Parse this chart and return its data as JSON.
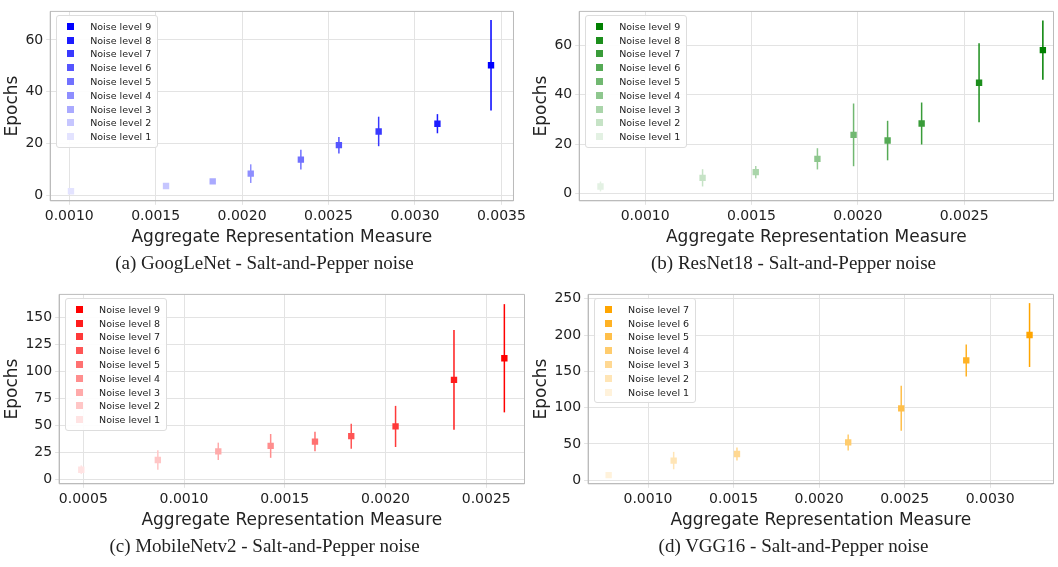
{
  "chart_data": [
    {
      "type": "scatter",
      "title": "(a) GoogLeNet - Salt-and-Pepper noise",
      "xlabel": "Aggregate Representation Measure",
      "ylabel": "Epochs",
      "marker": "square",
      "grid": true,
      "legend": "top left",
      "xlim": [
        0.00089,
        0.00357
      ],
      "ylim": [
        -2.2,
        71
      ],
      "yticks": [
        0,
        20,
        40,
        60
      ],
      "xticks": [
        {
          "value": 0.001,
          "label": "0.0010"
        },
        {
          "value": 0.0015,
          "label": "0.0015"
        },
        {
          "value": 0.002,
          "label": "0.0020"
        },
        {
          "value": 0.0025,
          "label": "0.0025"
        },
        {
          "value": 0.003,
          "label": "0.0030"
        },
        {
          "value": 0.0035,
          "label": "0.0035"
        }
      ],
      "series": [
        {
          "name": "Noise level 1",
          "color": "#e3e3ff",
          "x": [
            0.00101
          ],
          "values": [
            1.5
          ],
          "errors": [
            0.5
          ]
        },
        {
          "name": "Noise level 2",
          "color": "#c6c6ff",
          "x": [
            0.00156
          ],
          "values": [
            3.5
          ],
          "errors": [
            0.5
          ]
        },
        {
          "name": "Noise level 3",
          "color": "#aaaaff",
          "x": [
            0.00183
          ],
          "values": [
            5.3
          ],
          "errors": [
            0.8
          ]
        },
        {
          "name": "Noise level 4",
          "color": "#8e8eff",
          "x": [
            0.00205
          ],
          "values": [
            8.3
          ],
          "errors": [
            3.6
          ]
        },
        {
          "name": "Noise level 5",
          "color": "#7171ff",
          "x": [
            0.00234
          ],
          "values": [
            13.7
          ],
          "errors": [
            3.8
          ]
        },
        {
          "name": "Noise level 6",
          "color": "#5555ff",
          "x": [
            0.00256
          ],
          "values": [
            19.3
          ],
          "errors": [
            3.2
          ]
        },
        {
          "name": "Noise level 7",
          "color": "#3939ff",
          "x": [
            0.00279
          ],
          "values": [
            24.6
          ],
          "errors": [
            5.7
          ]
        },
        {
          "name": "Noise level 8",
          "color": "#1c1cff",
          "x": [
            0.00313
          ],
          "values": [
            27.6
          ],
          "errors": [
            3.7
          ]
        },
        {
          "name": "Noise level 9",
          "color": "#0000ff",
          "x": [
            0.00344
          ],
          "values": [
            50.2
          ],
          "errors": [
            17.5
          ]
        }
      ]
    },
    {
      "type": "scatter",
      "title": "(b) ResNet18 - Salt-and-Pepper noise",
      "xlabel": "Aggregate Representation Measure",
      "ylabel": "Epochs",
      "marker": "square",
      "grid": true,
      "legend": "top left",
      "xlim": [
        0.00069,
        0.00292
      ],
      "ylim": [
        -3,
        73.7
      ],
      "yticks": [
        0,
        20,
        40,
        60
      ],
      "xticks": [
        {
          "value": 0.001,
          "label": "0.0010"
        },
        {
          "value": 0.0015,
          "label": "0.0015"
        },
        {
          "value": 0.002,
          "label": "0.0020"
        },
        {
          "value": 0.0025,
          "label": "0.0025"
        }
      ],
      "series": [
        {
          "name": "Noise level 1",
          "color": "#e3f1e3",
          "x": [
            0.00079
          ],
          "values": [
            2.8
          ],
          "errors": [
            2
          ]
        },
        {
          "name": "Noise level 2",
          "color": "#c6e3c6",
          "x": [
            0.00127
          ],
          "values": [
            6.3
          ],
          "errors": [
            3.5
          ]
        },
        {
          "name": "Noise level 3",
          "color": "#aad5aa",
          "x": [
            0.00152
          ],
          "values": [
            8.6
          ],
          "errors": [
            2.5
          ]
        },
        {
          "name": "Noise level 4",
          "color": "#8ec78e",
          "x": [
            0.00181
          ],
          "values": [
            14
          ],
          "errors": [
            4.3
          ]
        },
        {
          "name": "Noise level 5",
          "color": "#71b871",
          "x": [
            0.00198
          ],
          "values": [
            23.7
          ],
          "errors": [
            12.7
          ]
        },
        {
          "name": "Noise level 6",
          "color": "#55aa55",
          "x": [
            0.00214
          ],
          "values": [
            21.4
          ],
          "errors": [
            8
          ]
        },
        {
          "name": "Noise level 7",
          "color": "#399c39",
          "x": [
            0.0023
          ],
          "values": [
            28.3
          ],
          "errors": [
            8.5
          ]
        },
        {
          "name": "Noise level 8",
          "color": "#1c8e1c",
          "x": [
            0.00257
          ],
          "values": [
            44.8
          ],
          "errors": [
            16
          ]
        },
        {
          "name": "Noise level 9",
          "color": "#008000",
          "x": [
            0.00287
          ],
          "values": [
            58
          ],
          "errors": [
            12
          ]
        }
      ]
    },
    {
      "type": "scatter",
      "title": "(c) MobileNetv2 - Salt-and-Pepper noise",
      "xlabel": "Aggregate Representation Measure",
      "ylabel": "Epochs",
      "marker": "square",
      "grid": true,
      "legend": "top left",
      "xlim": [
        0.00038,
        0.00269
      ],
      "ylim": [
        -4,
        171
      ],
      "yticks": [
        0,
        25,
        50,
        75,
        100,
        125,
        150
      ],
      "xticks": [
        {
          "value": 0.0005,
          "label": "0.0005"
        },
        {
          "value": 0.001,
          "label": "0.0010"
        },
        {
          "value": 0.0015,
          "label": "0.0015"
        },
        {
          "value": 0.002,
          "label": "0.0020"
        },
        {
          "value": 0.0025,
          "label": "0.0025"
        }
      ],
      "series": [
        {
          "name": "Noise level 1",
          "color": "#ffe3e3",
          "x": [
            0.00049
          ],
          "values": [
            9
          ],
          "errors": [
            4
          ]
        },
        {
          "name": "Noise level 2",
          "color": "#ffc6c6",
          "x": [
            0.00087
          ],
          "values": [
            18
          ],
          "errors": [
            9
          ]
        },
        {
          "name": "Noise level 3",
          "color": "#ffaaaa",
          "x": [
            0.00117
          ],
          "values": [
            26
          ],
          "errors": [
            8
          ]
        },
        {
          "name": "Noise level 4",
          "color": "#ff8e8e",
          "x": [
            0.00143
          ],
          "values": [
            31
          ],
          "errors": [
            11
          ]
        },
        {
          "name": "Noise level 5",
          "color": "#ff7171",
          "x": [
            0.00165
          ],
          "values": [
            35
          ],
          "errors": [
            9
          ]
        },
        {
          "name": "Noise level 6",
          "color": "#ff5555",
          "x": [
            0.00183
          ],
          "values": [
            40
          ],
          "errors": [
            11.5
          ]
        },
        {
          "name": "Noise level 7",
          "color": "#ff3939",
          "x": [
            0.00205
          ],
          "values": [
            49
          ],
          "errors": [
            19
          ]
        },
        {
          "name": "Noise level 8",
          "color": "#ff1c1c",
          "x": [
            0.00234
          ],
          "values": [
            92
          ],
          "errors": [
            46
          ]
        },
        {
          "name": "Noise level 9",
          "color": "#ff0000",
          "x": [
            0.00259
          ],
          "values": [
            112
          ],
          "errors": [
            50
          ]
        }
      ]
    },
    {
      "type": "scatter",
      "title": "(d) VGG16 - Salt-and-Pepper noise",
      "xlabel": "Aggregate Representation Measure",
      "ylabel": "Epochs",
      "marker": "square",
      "grid": true,
      "legend": "top left",
      "xlim": [
        0.00065,
        0.00337
      ],
      "ylim": [
        -5,
        256
      ],
      "yticks": [
        0,
        50,
        100,
        150,
        200,
        250
      ],
      "xticks": [
        {
          "value": 0.001,
          "label": "0.0010"
        },
        {
          "value": 0.0015,
          "label": "0.0015"
        },
        {
          "value": 0.002,
          "label": "0.0020"
        },
        {
          "value": 0.0025,
          "label": "0.0025"
        },
        {
          "value": 0.003,
          "label": "0.0030"
        }
      ],
      "series": [
        {
          "name": "Noise level 1",
          "color": "#fff2db",
          "x": [
            0.00077
          ],
          "values": [
            7
          ],
          "errors": [
            3
          ]
        },
        {
          "name": "Noise level 2",
          "color": "#ffe5b6",
          "x": [
            0.00115
          ],
          "values": [
            27
          ],
          "errors": [
            12
          ]
        },
        {
          "name": "Noise level 3",
          "color": "#ffd892",
          "x": [
            0.00152
          ],
          "values": [
            36
          ],
          "errors": [
            9
          ]
        },
        {
          "name": "Noise level 4",
          "color": "#ffcc6d",
          "x": [
            0.00217
          ],
          "values": [
            52
          ],
          "errors": [
            11
          ]
        },
        {
          "name": "Noise level 5",
          "color": "#ffbf49",
          "x": [
            0.00248
          ],
          "values": [
            99
          ],
          "errors": [
            31
          ]
        },
        {
          "name": "Noise level 6",
          "color": "#ffb224",
          "x": [
            0.00286
          ],
          "values": [
            165
          ],
          "errors": [
            22
          ]
        },
        {
          "name": "Noise level 7",
          "color": "#ffa500",
          "x": [
            0.00323
          ],
          "values": [
            200
          ],
          "errors": [
            44
          ]
        }
      ]
    }
  ]
}
